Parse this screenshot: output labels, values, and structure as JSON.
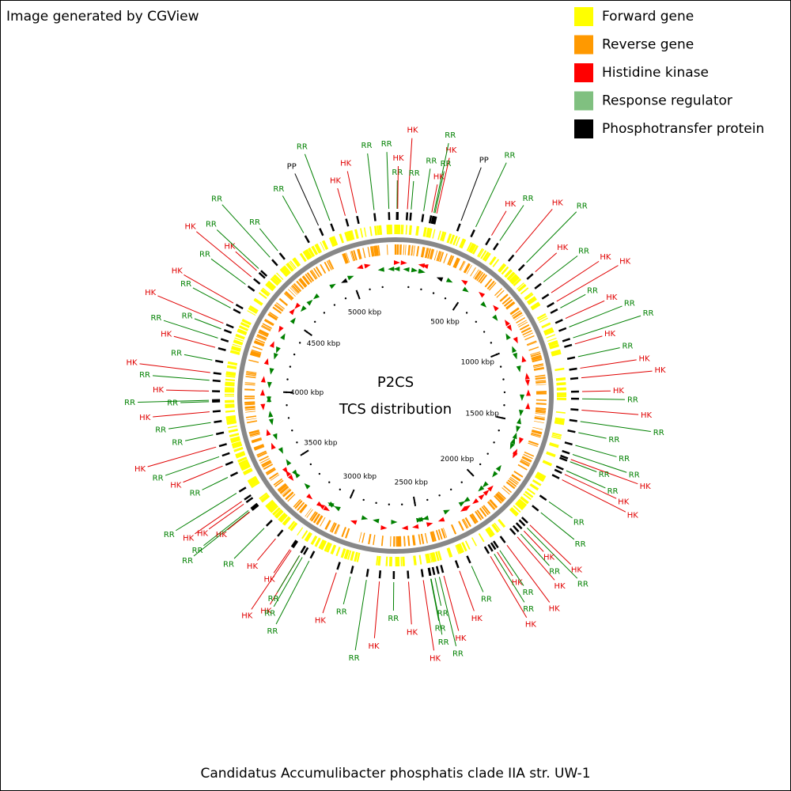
{
  "header": "Image generated by CGView",
  "legend": [
    {
      "label": "Forward gene",
      "color": "#ffff00"
    },
    {
      "label": "Reverse gene",
      "color": "#ff9900"
    },
    {
      "label": "Histidine kinase",
      "color": "#ff0000"
    },
    {
      "label": "Response regulator",
      "color": "#80c080"
    },
    {
      "label": "Phosphotransfer protein",
      "color": "#000000"
    }
  ],
  "center": {
    "title": "P2CS",
    "subtitle": "TCS distribution"
  },
  "caption": "Candidatus Accumulibacter phosphatis clade IIA str. UW-1",
  "range_kbp": [
    0,
    5300
  ],
  "scale_ticks": [
    {
      "value": 500,
      "label": "500 kbp"
    },
    {
      "value": 1000,
      "label": "1000 kbp"
    },
    {
      "value": 1500,
      "label": "1500 kbp"
    },
    {
      "value": 2000,
      "label": "2000 kbp"
    },
    {
      "value": 2500,
      "label": "2500 kbp"
    },
    {
      "value": 3000,
      "label": "3000 kbp"
    },
    {
      "value": 3500,
      "label": "3500 kbp"
    },
    {
      "value": 4000,
      "label": "4000 kbp"
    },
    {
      "value": 4500,
      "label": "4500 kbp"
    },
    {
      "value": 5000,
      "label": "5000 kbp"
    }
  ],
  "feature_colors": {
    "HK": "#e00000",
    "RR": "#008000",
    "PP": "#000000"
  },
  "features": [
    {
      "label": "RR",
      "kbp": 7
    },
    {
      "label": "HK",
      "kbp": 10
    },
    {
      "label": "RR",
      "kbp": 5270
    },
    {
      "label": "HK",
      "kbp": 54
    },
    {
      "label": "RR",
      "kbp": 71
    },
    {
      "label": "RR",
      "kbp": 128
    },
    {
      "label": "HK",
      "kbp": 188
    },
    {
      "label": "RR",
      "kbp": 175
    },
    {
      "label": "HK",
      "kbp": 165
    },
    {
      "label": "RR",
      "kbp": 180
    },
    {
      "label": "PP",
      "kbp": 303
    },
    {
      "label": "RR",
      "kbp": 375
    },
    {
      "label": "HK",
      "kbp": 456
    },
    {
      "label": "RR",
      "kbp": 500
    },
    {
      "label": "HK",
      "kbp": 590
    },
    {
      "label": "RR",
      "kbp": 656
    },
    {
      "label": "HK",
      "kbp": 714
    },
    {
      "label": "RR",
      "kbp": 773
    },
    {
      "label": "HK",
      "kbp": 833
    },
    {
      "label": "HK",
      "kbp": 879
    },
    {
      "label": "RR",
      "kbp": 913
    },
    {
      "label": "HK",
      "kbp": 966
    },
    {
      "label": "RR",
      "kbp": 1008
    },
    {
      "label": "RR",
      "kbp": 1060
    },
    {
      "label": "HK",
      "kbp": 1089
    },
    {
      "label": "RR",
      "kbp": 1148
    },
    {
      "label": "HK",
      "kbp": 1201
    },
    {
      "label": "HK",
      "kbp": 1245
    },
    {
      "label": "HK",
      "kbp": 1307
    },
    {
      "label": "RR",
      "kbp": 1340
    },
    {
      "label": "HK",
      "kbp": 1391
    },
    {
      "label": "RR",
      "kbp": 1443
    },
    {
      "label": "RR",
      "kbp": 1494
    },
    {
      "label": "RR",
      "kbp": 1553
    },
    {
      "label": "RR",
      "kbp": 1596
    },
    {
      "label": "HK",
      "kbp": 1620
    },
    {
      "label": "RR",
      "kbp": 1631
    },
    {
      "label": "RR",
      "kbp": 1675
    },
    {
      "label": "HK",
      "kbp": 1693
    },
    {
      "label": "HK",
      "kbp": 1720
    },
    {
      "label": "RR",
      "kbp": 1836
    },
    {
      "label": "RR",
      "kbp": 1897
    },
    {
      "label": "HK",
      "kbp": 1972
    },
    {
      "label": "RR",
      "kbp": 1990
    },
    {
      "label": "HK",
      "kbp": 2010
    },
    {
      "label": "RR",
      "kbp": 2030
    },
    {
      "label": "HK",
      "kbp": 2050
    },
    {
      "label": "HK",
      "kbp": 2110
    },
    {
      "label": "HK",
      "kbp": 2164
    },
    {
      "label": "RR",
      "kbp": 2150
    },
    {
      "label": "RR",
      "kbp": 2180
    },
    {
      "label": "HK",
      "kbp": 2200
    },
    {
      "label": "RR",
      "kbp": 2296
    },
    {
      "label": "HK",
      "kbp": 2355
    },
    {
      "label": "HK",
      "kbp": 2429
    },
    {
      "label": "RR",
      "kbp": 2450
    },
    {
      "label": "RR",
      "kbp": 2470
    },
    {
      "label": "RR",
      "kbp": 2490
    },
    {
      "label": "RR",
      "kbp": 2488
    },
    {
      "label": "HK",
      "kbp": 2524
    },
    {
      "label": "RR",
      "kbp": 2658
    },
    {
      "label": "HK",
      "kbp": 2591
    },
    {
      "label": "HK",
      "kbp": 2723
    },
    {
      "label": "RR",
      "kbp": 2782
    },
    {
      "label": "RR",
      "kbp": 2856
    },
    {
      "label": "HK",
      "kbp": 2922
    },
    {
      "label": "HK",
      "kbp": 3106
    },
    {
      "label": "HK",
      "kbp": 3150
    },
    {
      "label": "HK",
      "kbp": 3157
    },
    {
      "label": "RR",
      "kbp": 3106
    },
    {
      "label": "RR",
      "kbp": 3091
    },
    {
      "label": "RR",
      "kbp": 3056
    },
    {
      "label": "HK",
      "kbp": 3238
    },
    {
      "label": "RR",
      "kbp": 3308
    },
    {
      "label": "RR",
      "kbp": 3415
    },
    {
      "label": "RR",
      "kbp": 3408
    },
    {
      "label": "HK",
      "kbp": 3406
    },
    {
      "label": "HK",
      "kbp": 3451
    },
    {
      "label": "HK",
      "kbp": 3466
    },
    {
      "label": "RR",
      "kbp": 3510
    },
    {
      "label": "RR",
      "kbp": 3592
    },
    {
      "label": "HK",
      "kbp": 3648
    },
    {
      "label": "RR",
      "kbp": 3693
    },
    {
      "label": "HK",
      "kbp": 3739
    },
    {
      "label": "RR",
      "kbp": 3796
    },
    {
      "label": "RR",
      "kbp": 3852
    },
    {
      "label": "HK",
      "kbp": 3901
    },
    {
      "label": "RR",
      "kbp": 3953
    },
    {
      "label": "RR",
      "kbp": 3947
    },
    {
      "label": "HK",
      "kbp": 3995
    },
    {
      "label": "RR",
      "kbp": 4044
    },
    {
      "label": "HK",
      "kbp": 4079
    },
    {
      "label": "RR",
      "kbp": 4136
    },
    {
      "label": "HK",
      "kbp": 4195
    },
    {
      "label": "RR",
      "kbp": 4239
    },
    {
      "label": "HK",
      "kbp": 4310
    },
    {
      "label": "RR",
      "kbp": 4283
    },
    {
      "label": "RR",
      "kbp": 4387
    },
    {
      "label": "HK",
      "kbp": 4412
    },
    {
      "label": "HK",
      "kbp": 4556
    },
    {
      "label": "HK",
      "kbp": 4593
    },
    {
      "label": "RR",
      "kbp": 4513
    },
    {
      "label": "RR",
      "kbp": 4606
    },
    {
      "label": "RR",
      "kbp": 4678
    },
    {
      "label": "RR",
      "kbp": 4724
    },
    {
      "label": "RR",
      "kbp": 4866
    },
    {
      "label": "PP",
      "kbp": 4941
    },
    {
      "label": "RR",
      "kbp": 4997
    },
    {
      "label": "HK",
      "kbp": 5070
    },
    {
      "label": "HK",
      "kbp": 5122
    },
    {
      "label": "RR",
      "kbp": 5203
    }
  ]
}
